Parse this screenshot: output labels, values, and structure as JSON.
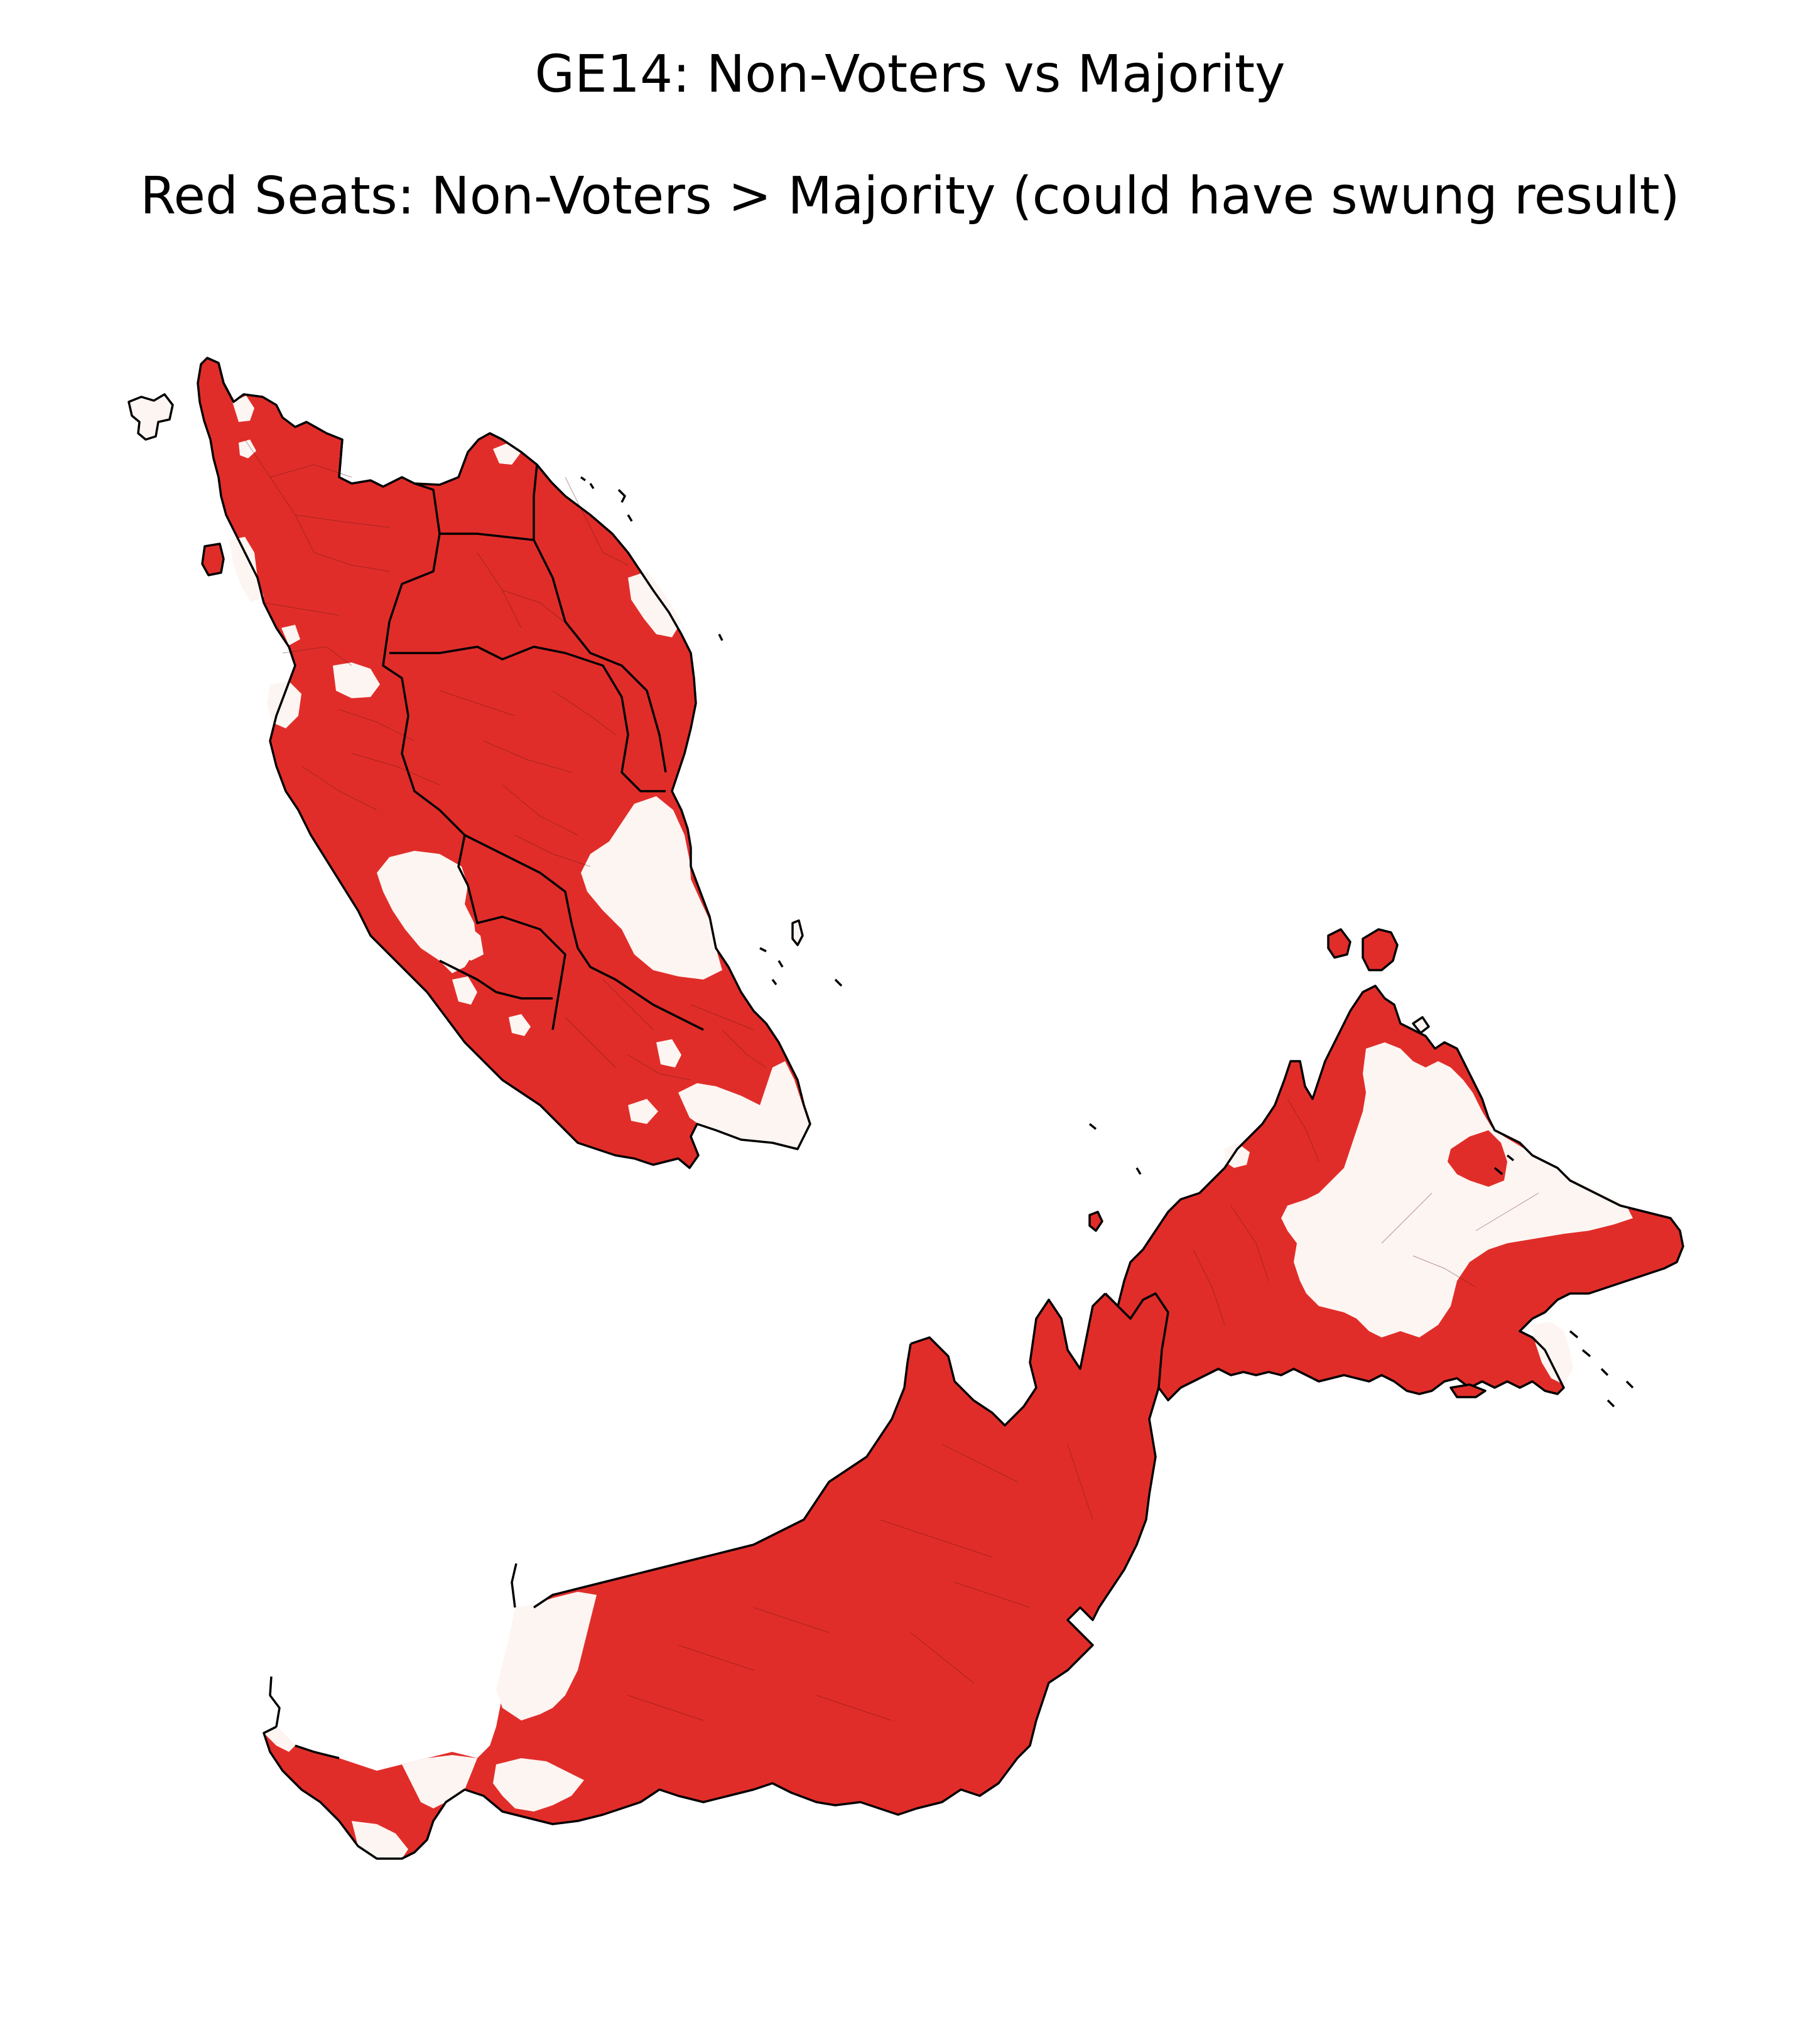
{
  "title": "GE14: Non-Voters vs Majority",
  "subtitle": "Red Seats: Non-Voters > Majority (could have swung result)",
  "colors": {
    "background": "#ffffff",
    "red_seat": "#e12d29",
    "other_seat": "#fdf5f2",
    "border": "#000000"
  },
  "legend": {
    "red_seats": "Non-Voters > Majority (could have swung result)"
  }
}
